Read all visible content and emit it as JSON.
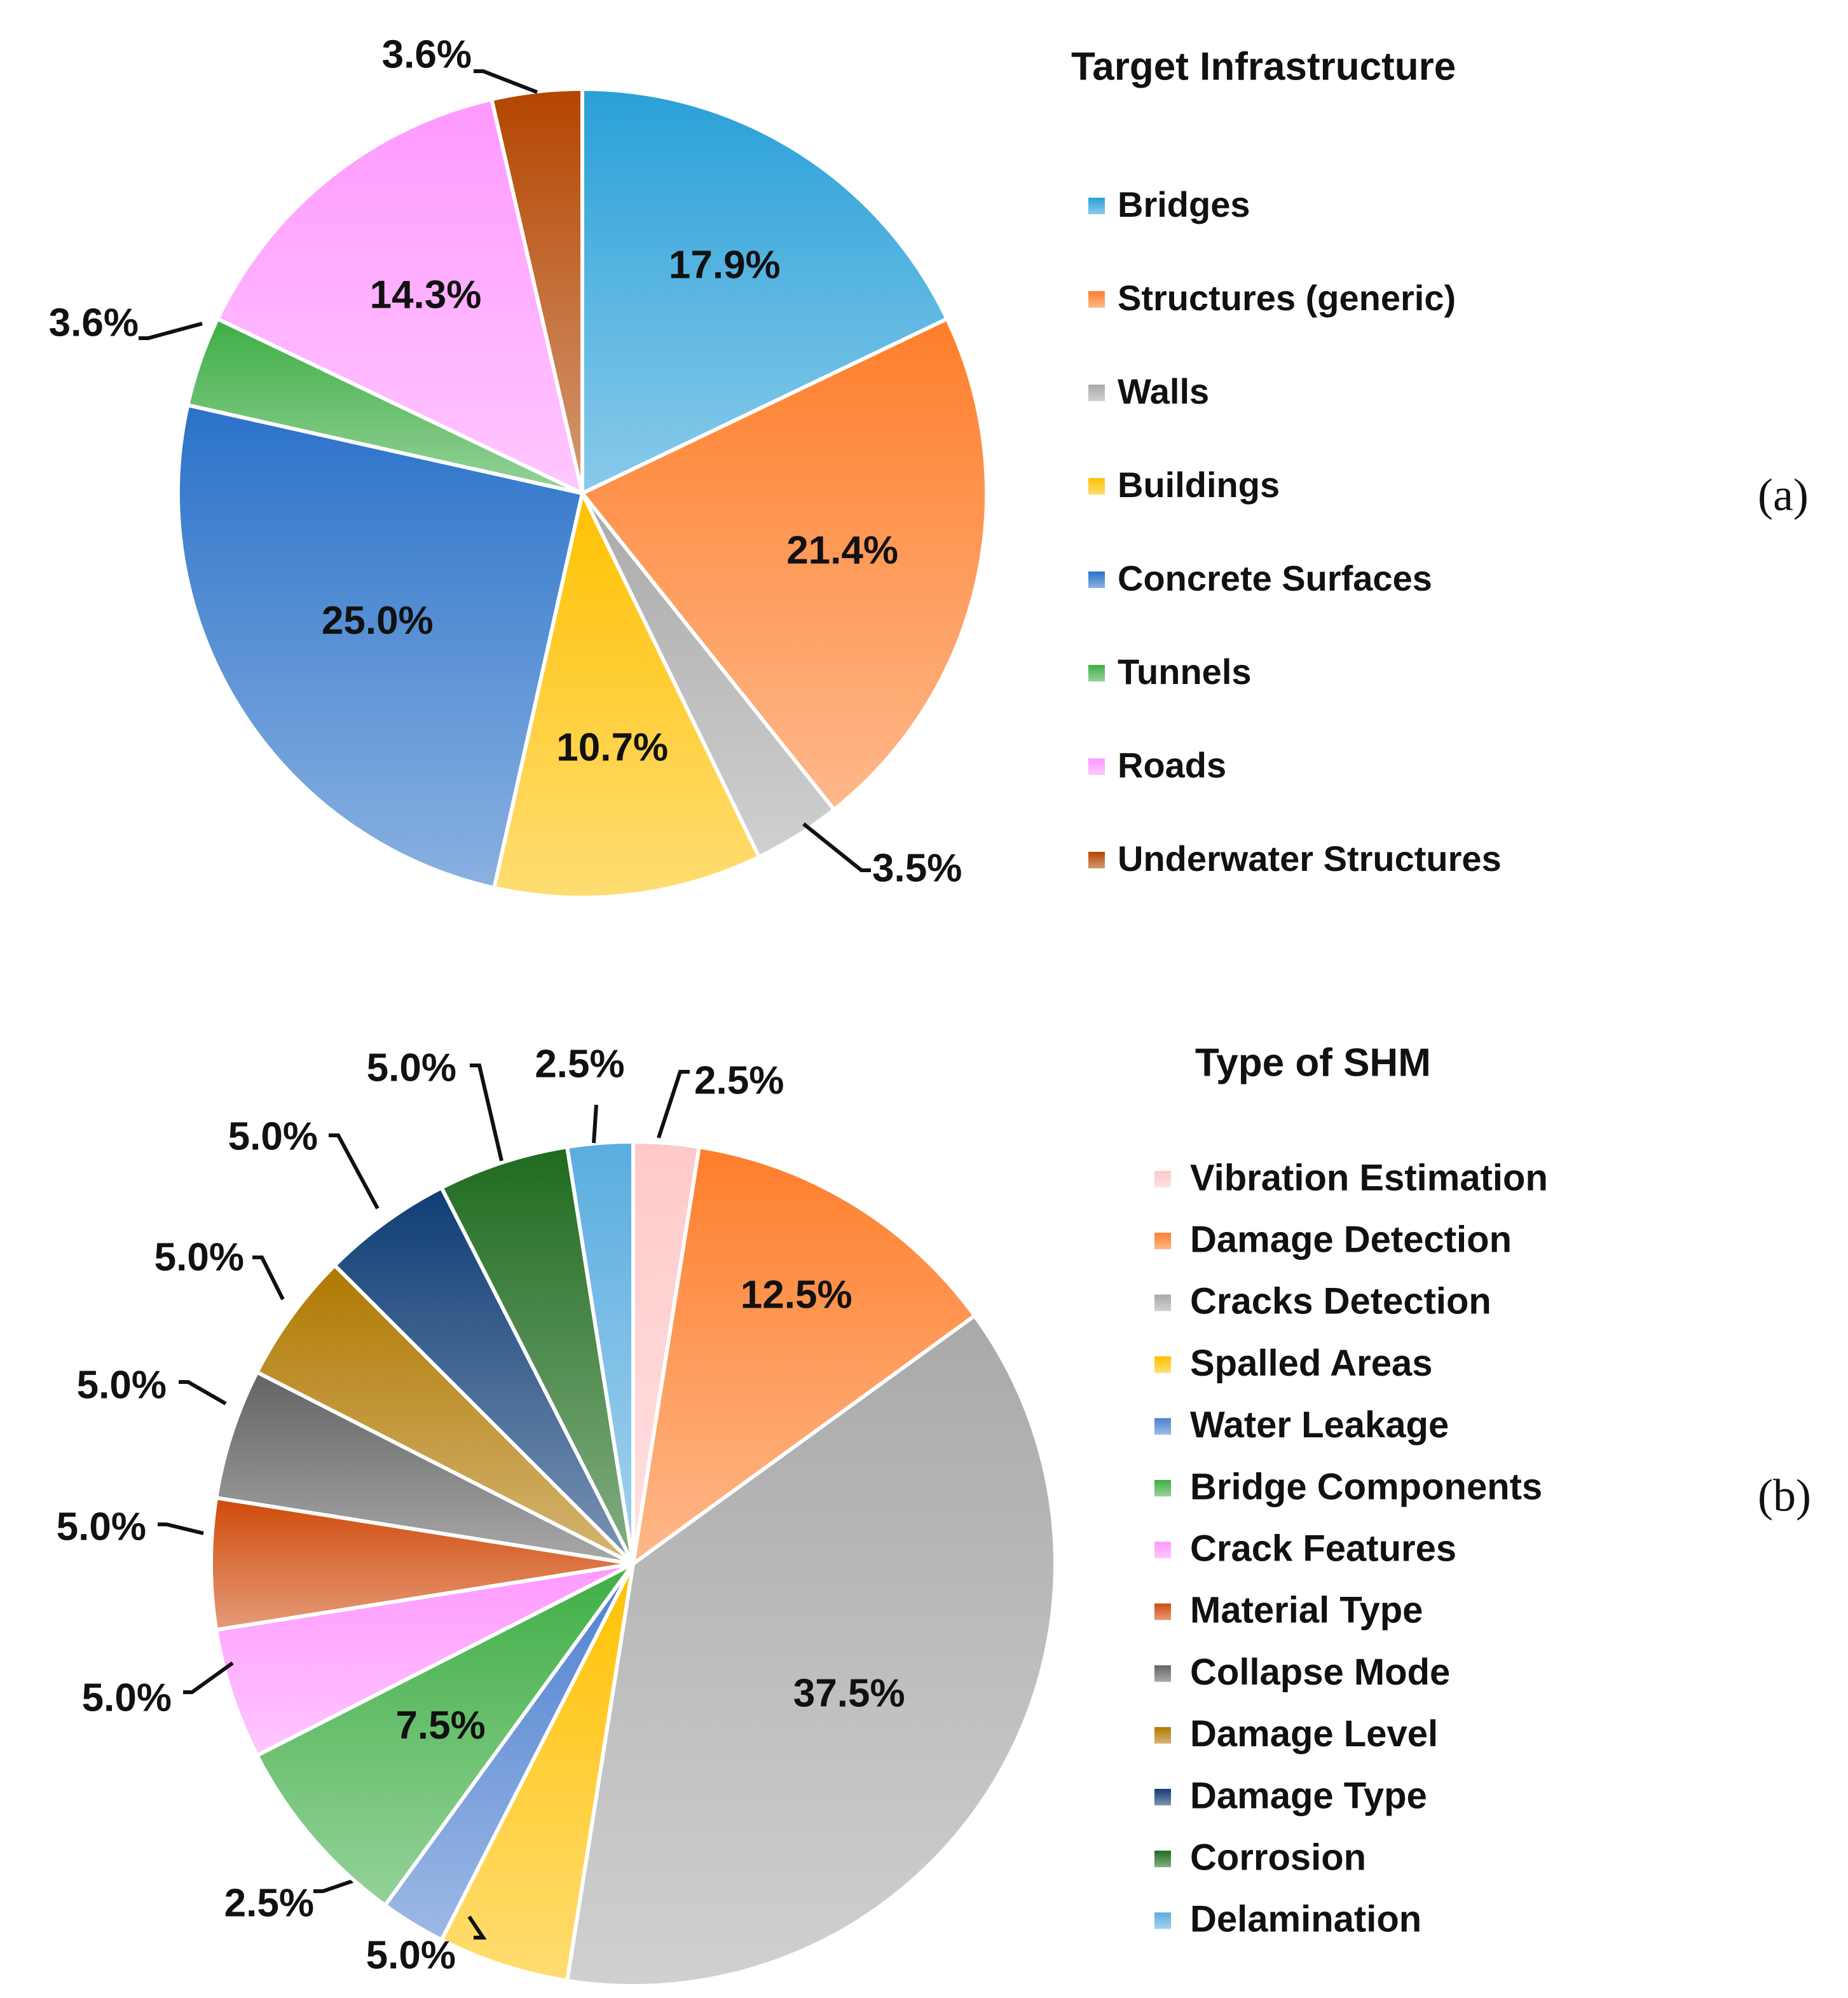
{
  "chart_data": [
    {
      "type": "pie",
      "panel_label": "(a)",
      "legend_title": "Target Infrastructure",
      "legend_position": "right",
      "slices": [
        {
          "name": "Bridges",
          "value": 17.9,
          "label": "17.9%",
          "color": "#29A0D8"
        },
        {
          "name": "Structures (generic)",
          "value": 21.4,
          "label": "21.4%",
          "color": "#FE7E2B"
        },
        {
          "name": "Walls",
          "value": 3.5,
          "label": "3.5%",
          "color": "#A9A9A9"
        },
        {
          "name": "Buildings",
          "value": 10.7,
          "label": "10.7%",
          "color": "#FFC100"
        },
        {
          "name": "Concrete Surfaces",
          "value": 25.0,
          "label": "25.0%",
          "color": "#2A72C9"
        },
        {
          "name": "Tunnels",
          "value": 3.6,
          "label": "3.6%",
          "color": "#3FAE45"
        },
        {
          "name": "Roads",
          "value": 14.3,
          "label": "14.3%",
          "color": "#FF99FF"
        },
        {
          "name": "Underwater Structures",
          "value": 3.6,
          "label": "3.6%",
          "color": "#B34500"
        }
      ]
    },
    {
      "type": "pie",
      "panel_label": "(b)",
      "legend_title": "Type of SHM",
      "legend_position": "right",
      "slices": [
        {
          "name": "Vibration Estimation",
          "value": 2.5,
          "label": "2.5%",
          "color": "#FFC9C9"
        },
        {
          "name": "Damage Detection",
          "value": 12.5,
          "label": "12.5%",
          "color": "#FE7E2B"
        },
        {
          "name": "Cracks Detection",
          "value": 37.5,
          "label": "37.5%",
          "color": "#A9A9A9"
        },
        {
          "name": "Spalled Areas",
          "value": 5.0,
          "label": "5.0%",
          "color": "#FFC100"
        },
        {
          "name": "Water Leakage",
          "value": 2.5,
          "label": "2.5%",
          "color": "#4D80CF"
        },
        {
          "name": "Bridge Components",
          "value": 7.5,
          "label": "7.5%",
          "color": "#3FAE45"
        },
        {
          "name": "Crack Features",
          "value": 5.0,
          "label": "5.0%",
          "color": "#FF99FF"
        },
        {
          "name": "Material Type",
          "value": 5.0,
          "label": "5.0%",
          "color": "#D04A0A"
        },
        {
          "name": "Collapse Mode",
          "value": 5.0,
          "label": "5.0%",
          "color": "#636363"
        },
        {
          "name": "Damage Level",
          "value": 5.0,
          "label": "5.0%",
          "color": "#B07800"
        },
        {
          "name": "Damage Type",
          "value": 5.0,
          "label": "5.0%",
          "color": "#0F3D75"
        },
        {
          "name": "Corrosion",
          "value": 5.0,
          "label": "5.0%",
          "color": "#1F6B1F"
        },
        {
          "name": "Delamination",
          "value": 2.5,
          "label": "2.5%",
          "color": "#5AADE0"
        }
      ]
    }
  ]
}
